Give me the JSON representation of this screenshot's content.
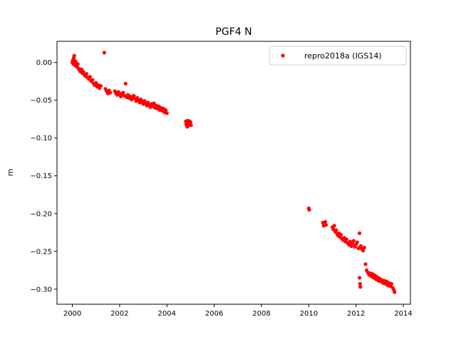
{
  "chart_data": {
    "type": "scatter",
    "title": "PGF4 N",
    "xlabel": "",
    "ylabel": "m",
    "xlim": [
      1999.35,
      2014.3
    ],
    "ylim": [
      -0.32,
      0.028
    ],
    "xticks": [
      2000,
      2002,
      2004,
      2006,
      2008,
      2010,
      2012,
      2014
    ],
    "xtick_labels": [
      "2000",
      "2002",
      "2004",
      "2006",
      "2008",
      "2010",
      "2012",
      "2014"
    ],
    "yticks": [
      0.0,
      -0.05,
      -0.1,
      -0.15,
      -0.2,
      -0.25,
      -0.3
    ],
    "ytick_labels": [
      "0.00",
      "−0.05",
      "−0.10",
      "−0.15",
      "−0.20",
      "−0.25",
      "−0.30"
    ],
    "legend": {
      "position": "top-right"
    },
    "grid": false,
    "colors": {
      "series": "#ff0000",
      "axes": "#000000",
      "background": "#ffffff"
    },
    "series": [
      {
        "name": "repro2018a (IGS14)",
        "marker": "circle",
        "points": [
          [
            2000.0,
            0.0
          ],
          [
            2000.02,
            0.003
          ],
          [
            2000.04,
            -0.002
          ],
          [
            2000.06,
            0.006
          ],
          [
            2000.08,
            0.009
          ],
          [
            2000.1,
            0.002
          ],
          [
            2000.12,
            -0.004
          ],
          [
            2000.14,
            0.001
          ],
          [
            2000.17,
            -0.003
          ],
          [
            2000.2,
            -0.006
          ],
          [
            2000.23,
            -0.002
          ],
          [
            2000.26,
            -0.008
          ],
          [
            2000.3,
            -0.01
          ],
          [
            2000.34,
            -0.012
          ],
          [
            2000.38,
            -0.009
          ],
          [
            2000.42,
            -0.014
          ],
          [
            2000.46,
            -0.012
          ],
          [
            2000.5,
            -0.016
          ],
          [
            2000.55,
            -0.018
          ],
          [
            2000.6,
            -0.015
          ],
          [
            2000.65,
            -0.02
          ],
          [
            2000.7,
            -0.022
          ],
          [
            2000.75,
            -0.019
          ],
          [
            2000.8,
            -0.025
          ],
          [
            2000.85,
            -0.023
          ],
          [
            2000.9,
            -0.028
          ],
          [
            2000.95,
            -0.03
          ],
          [
            2001.0,
            -0.027
          ],
          [
            2001.05,
            -0.032
          ],
          [
            2001.1,
            -0.03
          ],
          [
            2001.15,
            -0.034
          ],
          [
            2001.2,
            -0.031
          ],
          [
            2001.35,
            0.013
          ],
          [
            2001.4,
            -0.035
          ],
          [
            2001.45,
            -0.038
          ],
          [
            2001.5,
            -0.041
          ],
          [
            2001.55,
            -0.037
          ],
          [
            2001.6,
            -0.04
          ],
          [
            2001.8,
            -0.038
          ],
          [
            2001.85,
            -0.041
          ],
          [
            2001.9,
            -0.043
          ],
          [
            2001.95,
            -0.039
          ],
          [
            2002.0,
            -0.042
          ],
          [
            2002.05,
            -0.045
          ],
          [
            2002.1,
            -0.041
          ],
          [
            2002.15,
            -0.04
          ],
          [
            2002.2,
            -0.044
          ],
          [
            2002.25,
            -0.028
          ],
          [
            2002.3,
            -0.046
          ],
          [
            2002.35,
            -0.043
          ],
          [
            2002.4,
            -0.047
          ],
          [
            2002.45,
            -0.045
          ],
          [
            2002.5,
            -0.049
          ],
          [
            2002.55,
            -0.046
          ],
          [
            2002.6,
            -0.044
          ],
          [
            2002.65,
            -0.048
          ],
          [
            2002.7,
            -0.051
          ],
          [
            2002.75,
            -0.047
          ],
          [
            2002.8,
            -0.05
          ],
          [
            2002.85,
            -0.053
          ],
          [
            2002.9,
            -0.049
          ],
          [
            2002.95,
            -0.052
          ],
          [
            2003.0,
            -0.055
          ],
          [
            2003.05,
            -0.051
          ],
          [
            2003.1,
            -0.054
          ],
          [
            2003.15,
            -0.057
          ],
          [
            2003.2,
            -0.053
          ],
          [
            2003.25,
            -0.056
          ],
          [
            2003.3,
            -0.059
          ],
          [
            2003.35,
            -0.055
          ],
          [
            2003.4,
            -0.058
          ],
          [
            2003.45,
            -0.054
          ],
          [
            2003.5,
            -0.06
          ],
          [
            2003.55,
            -0.057
          ],
          [
            2003.6,
            -0.061
          ],
          [
            2003.65,
            -0.058
          ],
          [
            2003.7,
            -0.063
          ],
          [
            2003.75,
            -0.06
          ],
          [
            2003.8,
            -0.064
          ],
          [
            2003.85,
            -0.061
          ],
          [
            2003.9,
            -0.066
          ],
          [
            2003.95,
            -0.063
          ],
          [
            2004.0,
            -0.067
          ],
          [
            2004.8,
            -0.078
          ],
          [
            2004.82,
            -0.082
          ],
          [
            2004.84,
            -0.079
          ],
          [
            2004.86,
            -0.085
          ],
          [
            2004.88,
            -0.077
          ],
          [
            2004.9,
            -0.081
          ],
          [
            2004.92,
            -0.083
          ],
          [
            2004.94,
            -0.08
          ],
          [
            2004.96,
            -0.078
          ],
          [
            2004.98,
            -0.082
          ],
          [
            2005.0,
            -0.079
          ],
          [
            2005.02,
            -0.083
          ],
          [
            2010.0,
            -0.193
          ],
          [
            2010.02,
            -0.195
          ],
          [
            2010.6,
            -0.212
          ],
          [
            2010.63,
            -0.216
          ],
          [
            2010.66,
            -0.213
          ],
          [
            2010.7,
            -0.211
          ],
          [
            2010.73,
            -0.215
          ],
          [
            2011.0,
            -0.218
          ],
          [
            2011.04,
            -0.221
          ],
          [
            2011.08,
            -0.216
          ],
          [
            2011.12,
            -0.224
          ],
          [
            2011.16,
            -0.222
          ],
          [
            2011.2,
            -0.227
          ],
          [
            2011.24,
            -0.229
          ],
          [
            2011.28,
            -0.226
          ],
          [
            2011.32,
            -0.231
          ],
          [
            2011.36,
            -0.228
          ],
          [
            2011.4,
            -0.233
          ],
          [
            2011.45,
            -0.235
          ],
          [
            2011.5,
            -0.232
          ],
          [
            2011.55,
            -0.237
          ],
          [
            2011.6,
            -0.234
          ],
          [
            2011.65,
            -0.239
          ],
          [
            2011.7,
            -0.241
          ],
          [
            2011.75,
            -0.237
          ],
          [
            2011.8,
            -0.243
          ],
          [
            2011.85,
            -0.24
          ],
          [
            2011.9,
            -0.236
          ],
          [
            2011.95,
            -0.244
          ],
          [
            2012.0,
            -0.241
          ],
          [
            2012.05,
            -0.238
          ],
          [
            2012.1,
            -0.246
          ],
          [
            2012.15,
            -0.226
          ],
          [
            2012.15,
            -0.285
          ],
          [
            2012.17,
            -0.293
          ],
          [
            2012.18,
            -0.297
          ],
          [
            2012.2,
            -0.243
          ],
          [
            2012.25,
            -0.247
          ],
          [
            2012.3,
            -0.249
          ],
          [
            2012.35,
            -0.245
          ],
          [
            2012.4,
            -0.267
          ],
          [
            2012.45,
            -0.275
          ],
          [
            2012.5,
            -0.278
          ],
          [
            2012.55,
            -0.281
          ],
          [
            2012.6,
            -0.279
          ],
          [
            2012.65,
            -0.283
          ],
          [
            2012.7,
            -0.28
          ],
          [
            2012.75,
            -0.285
          ],
          [
            2012.8,
            -0.282
          ],
          [
            2012.85,
            -0.287
          ],
          [
            2012.9,
            -0.284
          ],
          [
            2012.95,
            -0.289
          ],
          [
            2013.0,
            -0.286
          ],
          [
            2013.05,
            -0.29
          ],
          [
            2013.1,
            -0.288
          ],
          [
            2013.15,
            -0.292
          ],
          [
            2013.2,
            -0.289
          ],
          [
            2013.25,
            -0.293
          ],
          [
            2013.3,
            -0.29
          ],
          [
            2013.35,
            -0.295
          ],
          [
            2013.4,
            -0.292
          ],
          [
            2013.45,
            -0.296
          ],
          [
            2013.5,
            -0.293
          ],
          [
            2013.55,
            -0.298
          ],
          [
            2013.6,
            -0.301
          ],
          [
            2013.63,
            -0.304
          ]
        ]
      }
    ]
  }
}
